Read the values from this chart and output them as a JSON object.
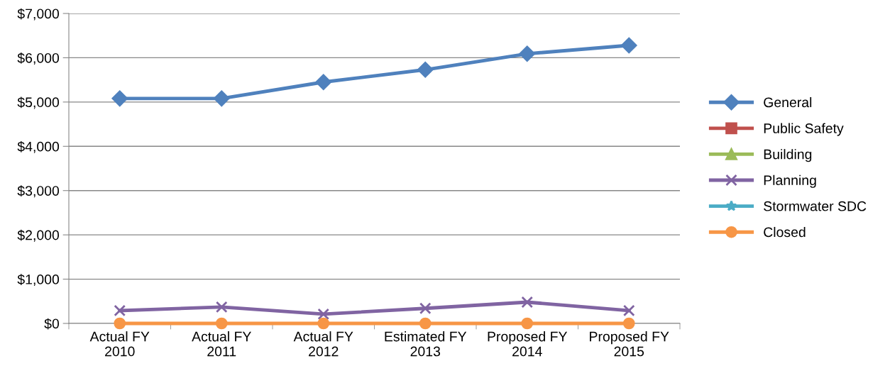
{
  "chart_data": {
    "type": "line",
    "categories": [
      "Actual FY\n2010",
      "Actual FY\n2011",
      "Actual FY\n2012",
      "Estimated FY\n2013",
      "Proposed FY\n2014",
      "Proposed FY\n2015"
    ],
    "series": [
      {
        "name": "General",
        "color": "#4f81bd",
        "marker": "diamond",
        "values": [
          5080,
          5080,
          5450,
          5730,
          6090,
          6280
        ]
      },
      {
        "name": "Public Safety",
        "color": "#c0504d",
        "marker": "square",
        "values": [
          null,
          null,
          null,
          null,
          null,
          null
        ]
      },
      {
        "name": "Building",
        "color": "#9bbb59",
        "marker": "triangle",
        "values": [
          null,
          null,
          null,
          null,
          null,
          null
        ]
      },
      {
        "name": "Planning",
        "color": "#8064a2",
        "marker": "cross",
        "values": [
          290,
          370,
          210,
          340,
          480,
          290
        ]
      },
      {
        "name": "Stormwater SDC",
        "color": "#4bacc6",
        "marker": "star",
        "values": [
          null,
          null,
          null,
          null,
          null,
          null
        ]
      },
      {
        "name": "Closed",
        "color": "#f79646",
        "marker": "circle",
        "values": [
          0,
          0,
          0,
          0,
          0,
          0
        ]
      }
    ],
    "ylim": [
      0,
      7000
    ],
    "yticks": [
      {
        "value": 0,
        "label": "$0"
      },
      {
        "value": 1000,
        "label": "$1,000"
      },
      {
        "value": 2000,
        "label": "$2,000"
      },
      {
        "value": 3000,
        "label": "$3,000"
      },
      {
        "value": 4000,
        "label": "$4,000"
      },
      {
        "value": 5000,
        "label": "$5,000"
      },
      {
        "value": 6000,
        "label": "$6,000"
      },
      {
        "value": 7000,
        "label": "$7,000"
      }
    ],
    "grid": "y",
    "legend": "right",
    "line_style": "solid"
  }
}
